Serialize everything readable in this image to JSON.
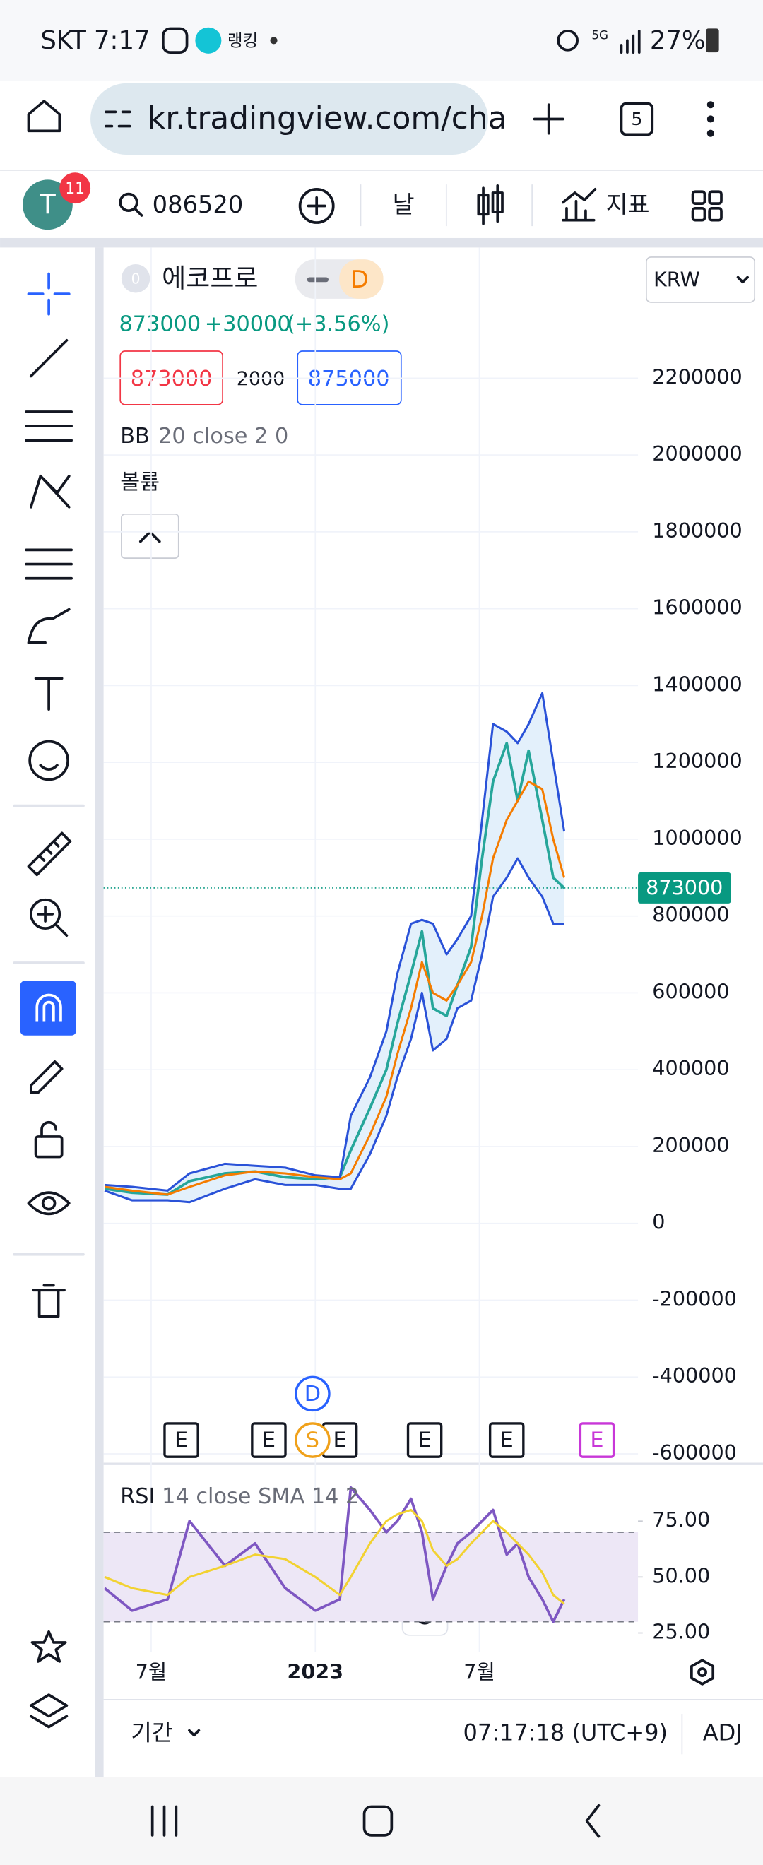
{
  "status_bar": {
    "time": "SKT 7:17",
    "app": "랭킹",
    "battery": "27%"
  },
  "browser": {
    "url": "kr.tradingview.com/cha",
    "tab_count": "5"
  },
  "toolbar": {
    "avatar": "T",
    "notifications": "11",
    "symbol": "086520",
    "interval": "날",
    "indicators": "지표"
  },
  "symbol_header": {
    "exchange_badge": "0",
    "name": "에코프로",
    "interval_badge": "D",
    "currency": "KRW",
    "change": "+30000",
    "change_pct": "(+3.56%)",
    "bid": "873000",
    "spread": "2000",
    "ask": "875000",
    "indicator": "BB",
    "indicator_params": "20 close 2 0",
    "volume_label": "볼륨"
  },
  "footer": {
    "range": "기간",
    "clock": "07:17:18 (UTC+9)",
    "adjust": "ADJ"
  },
  "chart_data": [
    {
      "type": "line",
      "x": [
        -1.7,
        -0.7,
        0.6,
        1.4,
        2.7,
        3.8,
        4.9,
        6.0,
        6.9,
        7.3,
        8.0,
        8.6,
        9.0,
        9.5,
        9.9,
        10.3,
        10.8,
        11.2,
        11.7,
        12.1,
        12.5,
        13.0,
        13.4,
        13.8,
        14.3,
        14.7,
        15.1
      ],
      "xlim": [
        -1.74,
        17.8
      ],
      "xticks": [
        {
          "value": 0,
          "label": "7월"
        },
        {
          "value": 6,
          "label": "2023"
        },
        {
          "value": 12,
          "label": "7월"
        }
      ],
      "ylim": [
        -620000,
        2540000
      ],
      "yticks": [
        -600000,
        -400000,
        -200000,
        0,
        200000,
        400000,
        600000,
        800000,
        1000000,
        1200000,
        1400000,
        1600000,
        1800000,
        2000000,
        2200000
      ],
      "grid": true,
      "band_fill": "#e3f0fb",
      "last_price_color": "#089981",
      "series": [
        {
          "color": "#26a69a",
          "values": [
            90000,
            80000,
            75000,
            110000,
            130000,
            135000,
            120000,
            115000,
            120000,
            190000,
            300000,
            400000,
            520000,
            650000,
            760000,
            560000,
            540000,
            620000,
            720000,
            950000,
            1150000,
            1250000,
            1100000,
            1230000,
            1050000,
            900000,
            873000
          ]
        },
        {
          "color": "#2a52d8",
          "values": [
            100000,
            95000,
            85000,
            130000,
            155000,
            150000,
            145000,
            125000,
            120000,
            280000,
            380000,
            500000,
            650000,
            780000,
            790000,
            780000,
            700000,
            740000,
            800000,
            1050000,
            1300000,
            1280000,
            1250000,
            1300000,
            1380000,
            1200000,
            1020000
          ]
        },
        {
          "color": "#f57c00",
          "values": [
            95000,
            85000,
            75000,
            95000,
            125000,
            135000,
            130000,
            120000,
            115000,
            130000,
            230000,
            330000,
            440000,
            560000,
            680000,
            600000,
            580000,
            620000,
            680000,
            800000,
            950000,
            1050000,
            1100000,
            1150000,
            1130000,
            1000000,
            900000
          ]
        },
        {
          "color": "#2a52d8",
          "values": [
            85000,
            60000,
            60000,
            55000,
            90000,
            115000,
            100000,
            100000,
            90000,
            90000,
            180000,
            280000,
            380000,
            480000,
            600000,
            450000,
            480000,
            560000,
            580000,
            700000,
            850000,
            900000,
            950000,
            900000,
            850000,
            780000,
            780000
          ]
        }
      ],
      "events": [
        {
          "x": 1.1,
          "label": "E",
          "color": "#131722",
          "shape": "box"
        },
        {
          "x": 4.3,
          "label": "E",
          "color": "#131722",
          "shape": "box"
        },
        {
          "x": 6.9,
          "label": "E",
          "color": "#131722",
          "shape": "box"
        },
        {
          "x": 10.0,
          "label": "E",
          "color": "#131722",
          "shape": "box"
        },
        {
          "x": 13.0,
          "label": "E",
          "color": "#131722",
          "shape": "box"
        },
        {
          "x": 16.3,
          "label": "E",
          "color": "#c837d8",
          "shape": "box"
        },
        {
          "x": 5.9,
          "label": "S",
          "color": "#f0a11a",
          "shape": "circle"
        },
        {
          "x": 5.9,
          "label": "D",
          "color": "#2962ff",
          "shape": "circle"
        }
      ]
    },
    {
      "type": "line",
      "title": "RSI",
      "subtitle": "14 close SMA 14 2",
      "x": [
        -1.7,
        -0.7,
        0.6,
        1.4,
        2.7,
        3.8,
        4.9,
        6.0,
        6.9,
        7.3,
        8.0,
        8.6,
        9.0,
        9.5,
        9.9,
        10.3,
        10.8,
        11.2,
        11.7,
        12.1,
        12.5,
        13.0,
        13.4,
        13.8,
        14.3,
        14.7,
        15.1
      ],
      "xlim": [
        -1.74,
        17.8
      ],
      "ylim": [
        16.5,
        99.5
      ],
      "yticks": [
        {
          "value": 25,
          "label": "25.00"
        },
        {
          "value": 50,
          "label": "50.00"
        },
        {
          "value": 75,
          "label": "75.00"
        }
      ],
      "band": [
        30,
        70
      ],
      "band_fill": "#ede7f6",
      "series": [
        {
          "color": "#7e57c2",
          "values": [
            45,
            35,
            40,
            75,
            55,
            65,
            45,
            35,
            40,
            90,
            80,
            70,
            75,
            85,
            70,
            40,
            55,
            65,
            70,
            75,
            80,
            60,
            65,
            50,
            40,
            30,
            40
          ]
        },
        {
          "color": "#f2d231",
          "values": [
            50,
            45,
            42,
            50,
            55,
            60,
            58,
            50,
            42,
            50,
            65,
            75,
            78,
            80,
            75,
            62,
            55,
            58,
            65,
            70,
            75,
            70,
            65,
            60,
            52,
            42,
            38
          ]
        }
      ]
    }
  ]
}
